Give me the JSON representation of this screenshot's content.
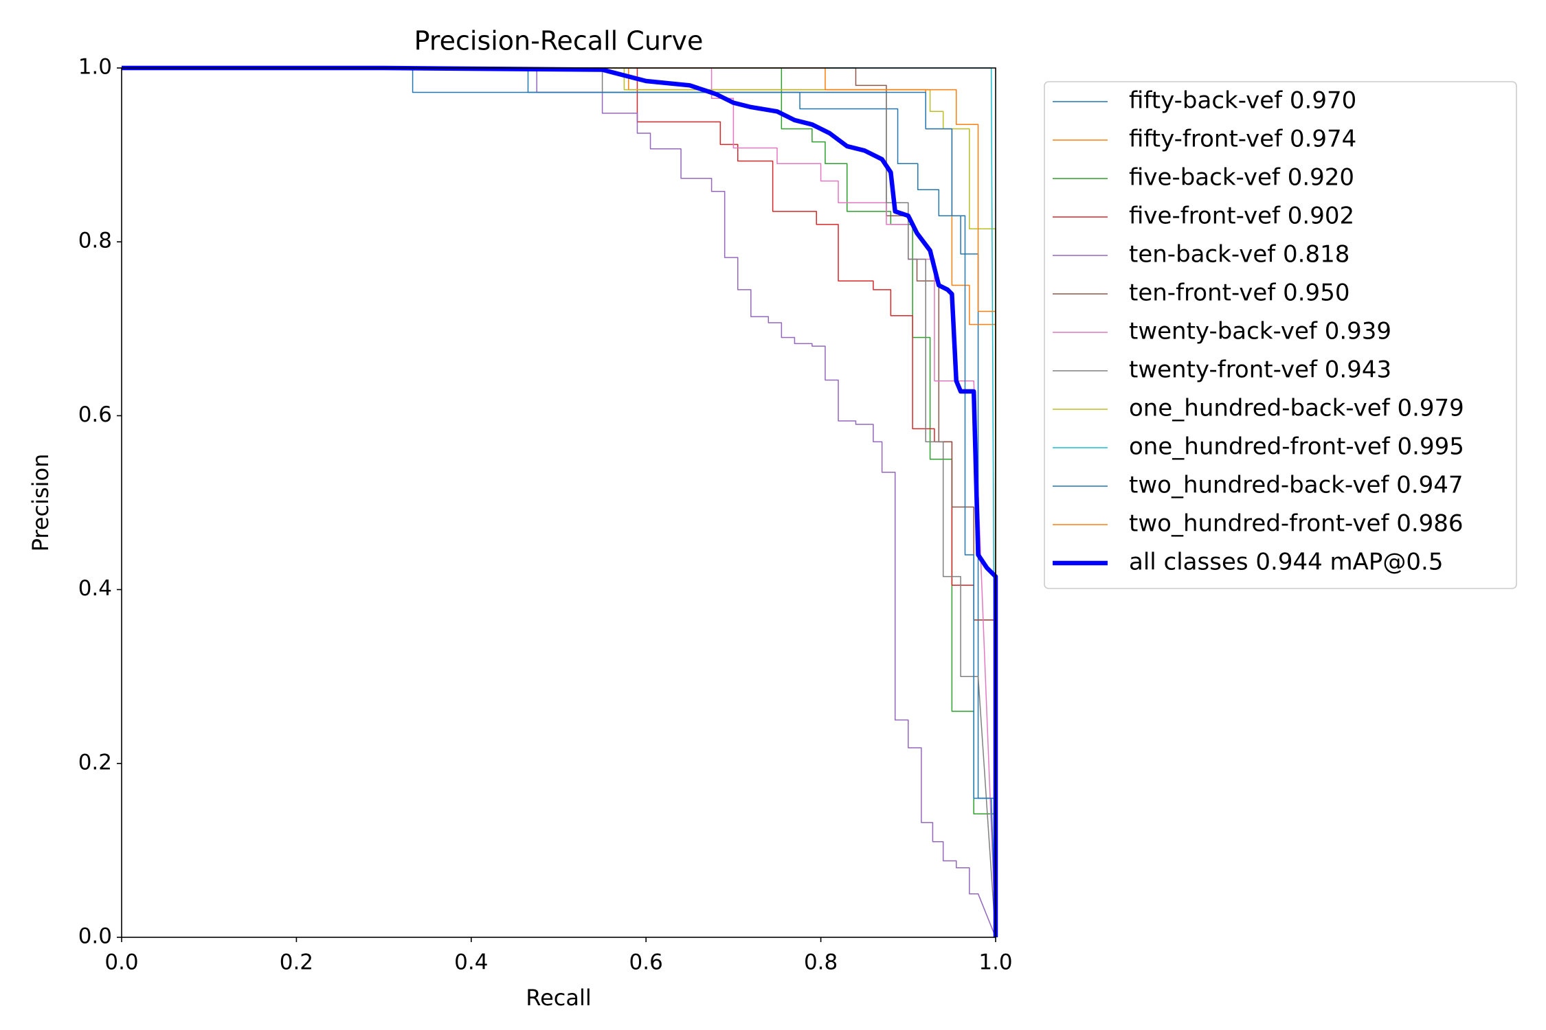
{
  "chart_data": {
    "type": "line",
    "title": "Precision-Recall Curve",
    "x_label": "Recall",
    "y_label": "Precision",
    "xlim": [
      0,
      1
    ],
    "ylim": [
      0,
      1
    ],
    "xticks": [
      {
        "value": 0,
        "label": "0.0"
      },
      {
        "value": 0.2,
        "label": "0.2"
      },
      {
        "value": 0.4,
        "label": "0.4"
      },
      {
        "value": 0.6,
        "label": "0.6"
      },
      {
        "value": 0.8,
        "label": "0.8"
      },
      {
        "value": 1,
        "label": "1.0"
      }
    ],
    "yticks": [
      {
        "value": 0,
        "label": "0.0"
      },
      {
        "value": 0.2,
        "label": "0.2"
      },
      {
        "value": 0.4,
        "label": "0.4"
      },
      {
        "value": 0.6,
        "label": "0.6"
      },
      {
        "value": 0.8,
        "label": "0.8"
      },
      {
        "value": 1,
        "label": "1.0"
      }
    ],
    "grid": false,
    "series": [
      {
        "name": "fifty-back-vef 0.970",
        "color": "#1f77b4",
        "linewidth": 1.5,
        "x": [
          0,
          0.333,
          0.333,
          0.776,
          0.776,
          0.888,
          0.888,
          0.911,
          0.911,
          0.935,
          0.935,
          0.96,
          0.96,
          0.98,
          0.98,
          1,
          1
        ],
        "values": [
          1,
          1,
          0.972,
          0.972,
          0.953,
          0.953,
          0.89,
          0.89,
          0.86,
          0.86,
          0.83,
          0.83,
          0.786,
          0.786,
          0.16,
          0.16,
          0
        ]
      },
      {
        "name": "fifty-front-vef 0.974",
        "color": "#ff7f0e",
        "linewidth": 1.5,
        "x": [
          0,
          0.58,
          0.58,
          0.92,
          0.92,
          0.95,
          0.95,
          0.97,
          0.97,
          1,
          1
        ],
        "values": [
          1,
          1,
          0.975,
          0.975,
          0.93,
          0.93,
          0.75,
          0.75,
          0.705,
          0.705,
          0
        ]
      },
      {
        "name": "five-back-vef 0.920",
        "color": "#2ca02c",
        "linewidth": 1.5,
        "x": [
          0,
          0.755,
          0.755,
          0.79,
          0.79,
          0.805,
          0.805,
          0.83,
          0.83,
          0.88,
          0.88,
          0.905,
          0.905,
          0.925,
          0.925,
          0.95,
          0.95,
          0.975,
          0.975,
          1,
          1
        ],
        "values": [
          1,
          1,
          0.93,
          0.93,
          0.915,
          0.915,
          0.89,
          0.89,
          0.835,
          0.835,
          0.82,
          0.82,
          0.69,
          0.69,
          0.55,
          0.55,
          0.26,
          0.26,
          0.142,
          0.142,
          0
        ]
      },
      {
        "name": "five-front-vef 0.902",
        "color": "#d62728",
        "linewidth": 1.5,
        "x": [
          0,
          0.59,
          0.59,
          0.685,
          0.685,
          0.705,
          0.705,
          0.745,
          0.745,
          0.795,
          0.795,
          0.82,
          0.82,
          0.86,
          0.86,
          0.88,
          0.88,
          0.905,
          0.905,
          0.93,
          0.93,
          0.95,
          0.95,
          0.975,
          0.975,
          1,
          1
        ],
        "values": [
          1,
          1,
          0.938,
          0.938,
          0.912,
          0.912,
          0.893,
          0.893,
          0.835,
          0.835,
          0.82,
          0.82,
          0.755,
          0.755,
          0.745,
          0.745,
          0.715,
          0.715,
          0.585,
          0.585,
          0.57,
          0.57,
          0.405,
          0.405,
          0.365,
          0.365,
          0
        ]
      },
      {
        "name": "ten-back-vef 0.818",
        "color": "#9467bd",
        "linewidth": 1.5,
        "x": [
          0,
          0.475,
          0.475,
          0.55,
          0.55,
          0.59,
          0.59,
          0.605,
          0.605,
          0.64,
          0.64,
          0.675,
          0.675,
          0.69,
          0.69,
          0.705,
          0.705,
          0.72,
          0.72,
          0.74,
          0.74,
          0.755,
          0.755,
          0.77,
          0.77,
          0.79,
          0.79,
          0.805,
          0.805,
          0.82,
          0.82,
          0.84,
          0.84,
          0.86,
          0.86,
          0.87,
          0.87,
          0.885,
          0.885,
          0.9,
          0.9,
          0.915,
          0.915,
          0.928,
          0.928,
          0.94,
          0.94,
          0.955,
          0.955,
          0.97,
          0.97,
          0.98,
          1
        ],
        "values": [
          1,
          1,
          0.972,
          0.972,
          0.948,
          0.948,
          0.925,
          0.925,
          0.907,
          0.907,
          0.873,
          0.873,
          0.858,
          0.858,
          0.782,
          0.782,
          0.745,
          0.745,
          0.714,
          0.714,
          0.707,
          0.707,
          0.69,
          0.69,
          0.683,
          0.683,
          0.68,
          0.68,
          0.641,
          0.641,
          0.594,
          0.594,
          0.59,
          0.59,
          0.57,
          0.57,
          0.535,
          0.535,
          0.25,
          0.25,
          0.218,
          0.218,
          0.132,
          0.132,
          0.11,
          0.11,
          0.088,
          0.088,
          0.08,
          0.08,
          0.05,
          0.05,
          0
        ]
      },
      {
        "name": "ten-front-vef 0.950",
        "color": "#8c564b",
        "linewidth": 1.5,
        "x": [
          0,
          0.84,
          0.84,
          0.875,
          0.875,
          0.9,
          0.9,
          0.91,
          0.91,
          0.935,
          0.935,
          0.95,
          0.95,
          0.975,
          0.975,
          1,
          1
        ],
        "values": [
          1,
          1,
          0.98,
          0.98,
          0.83,
          0.83,
          0.78,
          0.78,
          0.755,
          0.755,
          0.57,
          0.57,
          0.495,
          0.495,
          0.365,
          0.365,
          0
        ]
      },
      {
        "name": "twenty-back-vef 0.939",
        "color": "#e377c2",
        "linewidth": 1.5,
        "x": [
          0,
          0.675,
          0.675,
          0.7,
          0.7,
          0.75,
          0.75,
          0.8,
          0.8,
          0.82,
          0.82,
          0.875,
          0.875,
          0.9,
          0.9,
          0.93,
          0.93,
          0.975,
          1
        ],
        "values": [
          1,
          1,
          0.965,
          0.965,
          0.908,
          0.908,
          0.89,
          0.89,
          0.87,
          0.87,
          0.845,
          0.845,
          0.82,
          0.82,
          0.78,
          0.78,
          0.64,
          0.64,
          0
        ]
      },
      {
        "name": "twenty-front-vef 0.943",
        "color": "#7f7f7f",
        "linewidth": 1.5,
        "x": [
          0,
          0.55,
          0.55,
          0.875,
          0.875,
          0.9,
          0.9,
          0.92,
          0.92,
          0.94,
          0.94,
          0.96,
          0.96,
          0.98,
          1
        ],
        "values": [
          1,
          1,
          0.972,
          0.972,
          0.845,
          0.845,
          0.78,
          0.78,
          0.57,
          0.57,
          0.415,
          0.415,
          0.3,
          0.3,
          0
        ]
      },
      {
        "name": "one_hundred-back-vef 0.979",
        "color": "#bcbd22",
        "linewidth": 1.5,
        "x": [
          0,
          0.575,
          0.575,
          0.925,
          0.925,
          0.94,
          0.94,
          0.97,
          0.97,
          1,
          1
        ],
        "values": [
          1,
          1,
          0.975,
          0.975,
          0.95,
          0.95,
          0.93,
          0.93,
          0.815,
          0.815,
          0
        ]
      },
      {
        "name": "one_hundred-front-vef 0.995",
        "color": "#17becf",
        "linewidth": 1.5,
        "x": [
          0,
          0.995,
          1
        ],
        "values": [
          1,
          1,
          0
        ]
      },
      {
        "name": "two_hundred-back-vef 0.947",
        "color": "#1f77b4",
        "linewidth": 1.5,
        "x": [
          0,
          0.465,
          0.465,
          0.92,
          0.92,
          0.95,
          0.95,
          0.965,
          0.965,
          0.975,
          0.975,
          0.995,
          1
        ],
        "values": [
          1,
          1,
          0.972,
          0.972,
          0.93,
          0.93,
          0.83,
          0.83,
          0.44,
          0.44,
          0.16,
          0.16,
          0
        ]
      },
      {
        "name": "two_hundred-front-vef 0.986",
        "color": "#ff7f0e",
        "linewidth": 1.5,
        "x": [
          0,
          0.805,
          0.805,
          0.955,
          0.955,
          0.98,
          0.98,
          1,
          1
        ],
        "values": [
          1,
          1,
          0.975,
          0.975,
          0.935,
          0.935,
          0.72,
          0.72,
          0
        ]
      },
      {
        "name": "all classes 0.944 mAP@0.5",
        "color": "#0000ff",
        "linewidth": 6.5,
        "x": [
          0,
          0.3,
          0.55,
          0.6,
          0.65,
          0.68,
          0.7,
          0.72,
          0.75,
          0.77,
          0.79,
          0.81,
          0.83,
          0.85,
          0.87,
          0.88,
          0.885,
          0.9,
          0.91,
          0.925,
          0.935,
          0.945,
          0.95,
          0.955,
          0.96,
          0.975,
          0.98,
          0.99,
          1,
          1
        ],
        "values": [
          1,
          1,
          0.998,
          0.985,
          0.98,
          0.97,
          0.96,
          0.955,
          0.95,
          0.94,
          0.935,
          0.925,
          0.91,
          0.905,
          0.895,
          0.88,
          0.835,
          0.83,
          0.81,
          0.79,
          0.75,
          0.745,
          0.74,
          0.64,
          0.628,
          0.628,
          0.44,
          0.425,
          0.415,
          0
        ]
      }
    ]
  }
}
